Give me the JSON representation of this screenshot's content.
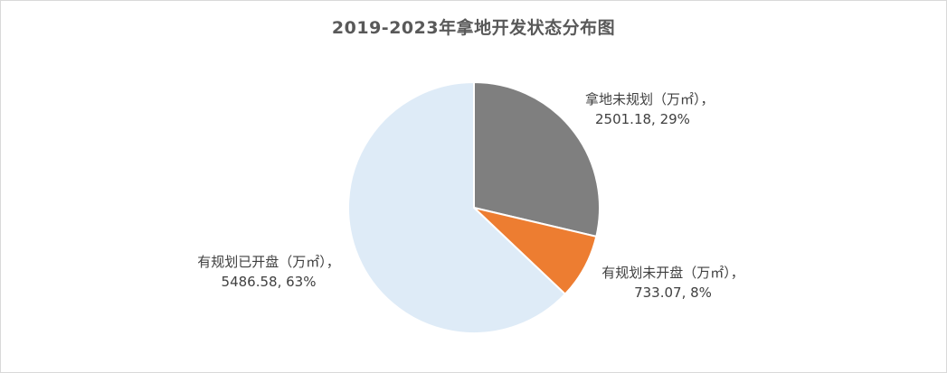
{
  "chart_data": {
    "type": "pie",
    "title": "2019-2023年拿地开发状态分布图",
    "categories": [
      "拿地未规划（万㎡）",
      "有规划未开盘（万㎡）",
      "有规划已开盘（万㎡）"
    ],
    "values": [
      2501.18,
      733.07,
      5486.58
    ],
    "percent_labels": [
      "29%",
      "8%",
      "63%"
    ],
    "value_labels": [
      "2501.18",
      "733.07",
      "5486.58"
    ],
    "colors": [
      "#7f7f7f",
      "#ed7d31",
      "#deebf7"
    ],
    "start_angle_deg": 0,
    "direction": "clockwise",
    "legend": "none",
    "data_label_text": [
      {
        "name": "拿地未规划（万㎡），",
        "value": "2501.18, 29%"
      },
      {
        "name": "有规划未开盘（万㎡），",
        "value": "733.07, 8%"
      },
      {
        "name": "有规划已开盘（万㎡），",
        "value": "5486.58, 63%"
      }
    ]
  }
}
